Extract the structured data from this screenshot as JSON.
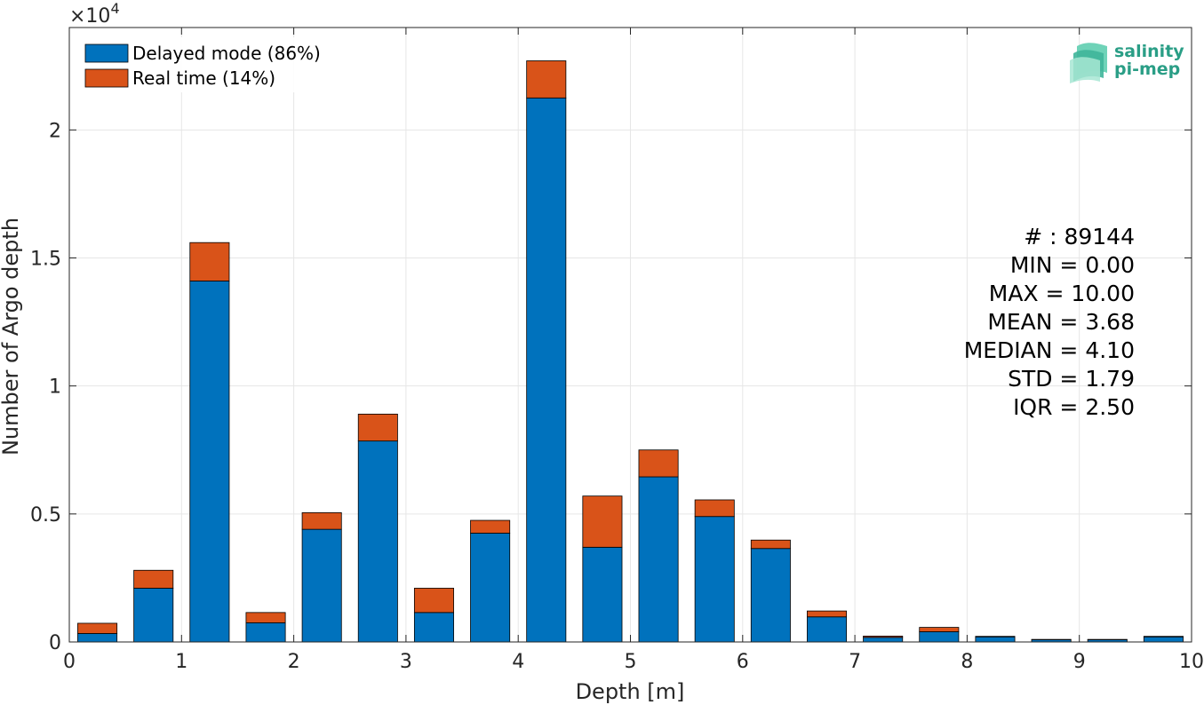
{
  "chart_data": {
    "type": "bar",
    "stacked": true,
    "xlabel": "Depth [m]",
    "ylabel": "Number of Argo depth",
    "y_exponent_label": "×10",
    "y_exponent_power": "4",
    "xlim": [
      0,
      10
    ],
    "ylim": [
      0,
      24000
    ],
    "x_ticks": [
      0,
      1,
      2,
      3,
      4,
      5,
      6,
      7,
      8,
      9,
      10
    ],
    "x_tick_labels": [
      "0",
      "1",
      "2",
      "3",
      "4",
      "5",
      "6",
      "7",
      "8",
      "9",
      "10"
    ],
    "y_ticks": [
      0,
      5000,
      10000,
      15000,
      20000
    ],
    "y_tick_labels": [
      "0",
      "0.5",
      "1",
      "1.5",
      "2"
    ],
    "grid": true,
    "legend_position": "top-left",
    "bin_width": 0.5,
    "bar_width_fraction": 0.7,
    "x": [
      0.25,
      0.75,
      1.25,
      1.75,
      2.25,
      2.75,
      3.25,
      3.75,
      4.25,
      4.75,
      5.25,
      5.75,
      6.25,
      6.75,
      7.25,
      7.75,
      8.25,
      8.75,
      9.25,
      9.75
    ],
    "series": [
      {
        "name": "Delayed mode (86%)",
        "color": "#0072BD",
        "values": [
          330,
          2100,
          14100,
          750,
          4400,
          7850,
          1150,
          4250,
          21250,
          3700,
          6450,
          4900,
          3650,
          980,
          180,
          400,
          200,
          90,
          90,
          200
        ]
      },
      {
        "name": "Real time (14%)",
        "color": "#D95319",
        "values": [
          400,
          700,
          1500,
          400,
          650,
          1050,
          950,
          500,
          1450,
          2000,
          1050,
          650,
          330,
          230,
          50,
          170,
          20,
          10,
          10,
          20
        ]
      }
    ],
    "stats": [
      "# : 89144",
      "MIN = 0.00",
      "MAX =  10.00",
      "MEAN = 3.68",
      "MEDIAN = 4.10",
      "STD = 1.79",
      "IQR = 2.50"
    ]
  },
  "logo": {
    "line1": "salinity",
    "line2": "pi-mep",
    "color": "#2a9e86"
  }
}
